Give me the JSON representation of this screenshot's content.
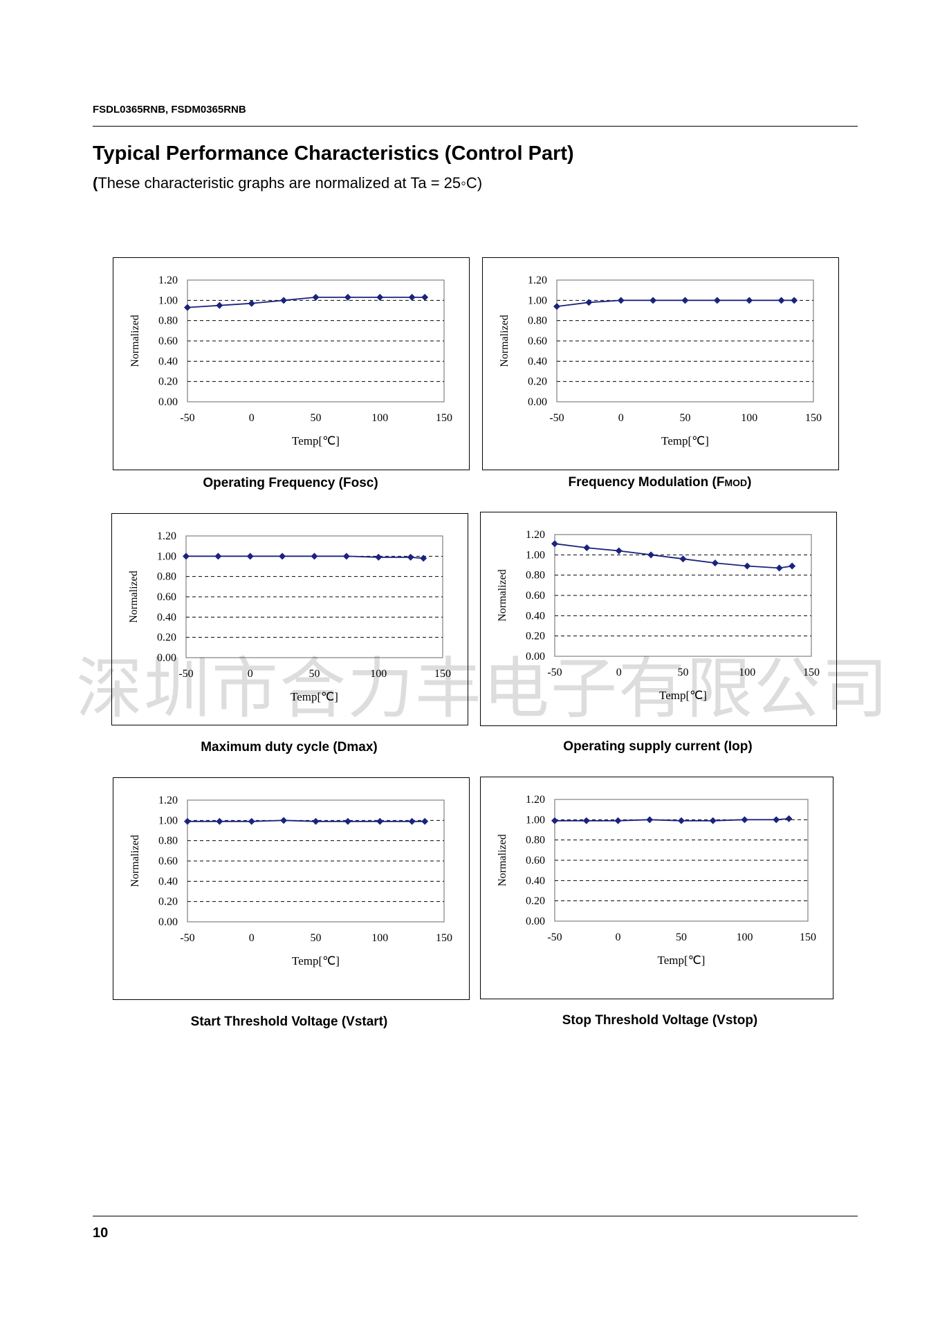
{
  "header": {
    "part_numbers": "FSDL0365RNB, FSDM0365RNB"
  },
  "page": {
    "title": "Typical Performance Characteristics (Control Part)",
    "subtitle_open": "(",
    "subtitle_text": "These characteristic graphs are normalized at Ta = 25◦C)",
    "watermark": "深圳市合力丰电子有限公司",
    "page_number": "10"
  },
  "captions": [
    {
      "main": "Operating Frequency (Fosc)",
      "sub": ""
    },
    {
      "main": "Frequency Modulation (F",
      "sub": "MOD",
      "tail": ")"
    },
    {
      "main": "Maximum duty cycle (Dmax)",
      "sub": ""
    },
    {
      "main": "Operating supply current (Iop)",
      "sub": ""
    },
    {
      "main": "Start Threshold Voltage (Vstart)",
      "sub": ""
    },
    {
      "main": "Stop Threshold Voltage (Vstop)",
      "sub": ""
    }
  ],
  "chart_data": [
    {
      "type": "line",
      "xlabel": "Temp[℃]",
      "ylabel": "Normalized",
      "xlim": [
        -50,
        150
      ],
      "ylim": [
        0,
        1.2
      ],
      "xticks": [
        "-50",
        "0",
        "50",
        "100",
        "150"
      ],
      "yticks": [
        "0.00",
        "0.20",
        "0.40",
        "0.60",
        "0.80",
        "1.00",
        "1.20"
      ],
      "grid": "dashed-horizontal",
      "line_color": "#1a237e",
      "x": [
        -50,
        -25,
        0,
        25,
        50,
        75,
        100,
        125,
        135
      ],
      "y": [
        0.93,
        0.95,
        0.97,
        1.0,
        1.03,
        1.03,
        1.03,
        1.03,
        1.03
      ]
    },
    {
      "type": "line",
      "xlabel": "Temp[℃]",
      "ylabel": "Normalized",
      "xlim": [
        -50,
        150
      ],
      "ylim": [
        0,
        1.2
      ],
      "xticks": [
        "-50",
        "0",
        "50",
        "100",
        "150"
      ],
      "yticks": [
        "0.00",
        "0.20",
        "0.40",
        "0.60",
        "0.80",
        "1.00",
        "1.20"
      ],
      "grid": "dashed-horizontal",
      "line_color": "#1a237e",
      "x": [
        -50,
        -25,
        0,
        25,
        50,
        75,
        100,
        125,
        135
      ],
      "y": [
        0.94,
        0.98,
        1.0,
        1.0,
        1.0,
        1.0,
        1.0,
        1.0,
        1.0
      ]
    },
    {
      "type": "line",
      "xlabel": "Temp[℃]",
      "ylabel": "Normalized",
      "xlim": [
        -50,
        150
      ],
      "ylim": [
        0,
        1.2
      ],
      "xticks": [
        "-50",
        "0",
        "50",
        "100",
        "150"
      ],
      "yticks": [
        "0.00",
        "0.20",
        "0.40",
        "0.60",
        "0.80",
        "1.00",
        "1.20"
      ],
      "grid": "dashed-horizontal",
      "line_color": "#1a237e",
      "x": [
        -50,
        -25,
        0,
        25,
        50,
        75,
        100,
        125,
        135
      ],
      "y": [
        1.0,
        1.0,
        1.0,
        1.0,
        1.0,
        1.0,
        0.99,
        0.99,
        0.98
      ]
    },
    {
      "type": "line",
      "xlabel": "Temp[℃]",
      "ylabel": "Normalized",
      "xlim": [
        -50,
        150
      ],
      "ylim": [
        0,
        1.2
      ],
      "xticks": [
        "-50",
        "0",
        "50",
        "100",
        "150"
      ],
      "yticks": [
        "0.00",
        "0.20",
        "0.40",
        "0.60",
        "0.80",
        "1.00",
        "1.20"
      ],
      "grid": "dashed-horizontal",
      "line_color": "#1a237e",
      "x": [
        -50,
        -25,
        0,
        25,
        50,
        75,
        100,
        125,
        135
      ],
      "y": [
        1.11,
        1.07,
        1.04,
        1.0,
        0.96,
        0.92,
        0.89,
        0.87,
        0.89
      ]
    },
    {
      "type": "line",
      "xlabel": "Temp[℃]",
      "ylabel": "Normalized",
      "xlim": [
        -50,
        150
      ],
      "ylim": [
        0,
        1.2
      ],
      "xticks": [
        "-50",
        "0",
        "50",
        "100",
        "150"
      ],
      "yticks": [
        "0.00",
        "0.20",
        "0.40",
        "0.60",
        "0.80",
        "1.00",
        "1.20"
      ],
      "grid": "dashed-horizontal",
      "line_color": "#1a237e",
      "x": [
        -50,
        -25,
        0,
        25,
        50,
        75,
        100,
        125,
        135
      ],
      "y": [
        0.99,
        0.99,
        0.99,
        1.0,
        0.99,
        0.99,
        0.99,
        0.99,
        0.99
      ]
    },
    {
      "type": "line",
      "xlabel": "Temp[℃]",
      "ylabel": "Normalized",
      "xlim": [
        -50,
        150
      ],
      "ylim": [
        0,
        1.2
      ],
      "xticks": [
        "-50",
        "0",
        "50",
        "100",
        "150"
      ],
      "yticks": [
        "0.00",
        "0.20",
        "0.40",
        "0.60",
        "0.80",
        "1.00",
        "1.20"
      ],
      "grid": "dashed-horizontal",
      "line_color": "#1a237e",
      "x": [
        -50,
        -25,
        0,
        25,
        50,
        75,
        100,
        125,
        135
      ],
      "y": [
        0.99,
        0.99,
        0.99,
        1.0,
        0.99,
        0.99,
        1.0,
        1.0,
        1.01
      ]
    }
  ]
}
